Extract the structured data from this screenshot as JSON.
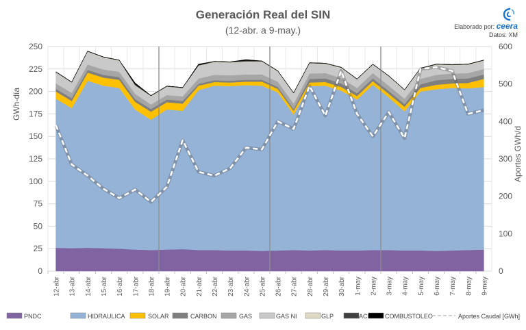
{
  "header": {
    "title": "Generación Real del SIN",
    "subtitle": "(12-abr. a 9-may.)",
    "credits_line1": "Elaborado por:",
    "credits_brand": "ceera",
    "credits_line2": "Datos: XM"
  },
  "chart_data": {
    "type": "area",
    "xlabel": "",
    "ylabel": "GWh-día",
    "y2label": "Aportes GWh/d",
    "ylim": [
      0,
      250
    ],
    "y2lim": [
      0,
      600
    ],
    "yticks": [
      "0",
      "25",
      "50",
      "75",
      "100",
      "125",
      "150",
      "175",
      "200",
      "225",
      "250"
    ],
    "y2ticks": [
      "0",
      "100",
      "200",
      "300",
      "400",
      "500",
      "600"
    ],
    "grid": true,
    "legend_position": "bottom",
    "categories": [
      "12-abr",
      "13-abr",
      "14-abr",
      "15-abr",
      "16-abr",
      "17-abr",
      "18-abr",
      "19-abr",
      "20-abr",
      "21-abr",
      "22-abr",
      "23-abr",
      "24-abr",
      "25-abr",
      "26-abr",
      "27-abr",
      "28-abr",
      "29-abr",
      "30-abr",
      "1-may",
      "2-may",
      "3-may",
      "4-may",
      "5-may",
      "6-may",
      "7-may",
      "8-may",
      "9-may"
    ],
    "week_separators_after": [
      "18-abr",
      "25-abr",
      "2-may"
    ],
    "series": [
      {
        "name": "PNDC",
        "color": "#8064a2",
        "values": [
          26,
          25.5,
          26,
          25.5,
          25,
          24,
          23.5,
          24,
          24.5,
          23.5,
          23.5,
          23,
          23,
          22.5,
          23,
          23.5,
          23,
          23.5,
          23,
          23,
          23.5,
          23.5,
          23,
          23,
          22.5,
          23,
          23.5,
          24
        ]
      },
      {
        "name": "HIDRAULICA",
        "color": "#95b3d7",
        "values": [
          166,
          156,
          186,
          181,
          179,
          156,
          145,
          156,
          154,
          178,
          183,
          183,
          184,
          184,
          176,
          151,
          183,
          183,
          178,
          168,
          184,
          170,
          155,
          177,
          180,
          181,
          180,
          181
        ]
      },
      {
        "name": "SOLAR",
        "color": "#ffc000",
        "values": [
          8,
          8,
          9,
          9,
          9,
          8.5,
          9,
          8,
          8,
          5,
          4,
          4,
          4,
          4.5,
          4,
          4,
          4,
          4,
          4,
          4,
          4,
          4,
          5,
          4,
          5,
          5,
          6,
          9
        ]
      },
      {
        "name": "CARBON",
        "color": "#7f7f7f",
        "values": [
          3,
          3,
          3,
          3,
          3,
          3,
          3,
          3,
          3,
          2,
          2,
          2,
          2,
          2,
          2,
          2,
          4,
          4,
          4,
          3,
          3,
          3,
          3,
          4,
          5,
          5,
          5,
          5
        ]
      },
      {
        "name": "GAS",
        "color": "#a6a6a6",
        "values": [
          6,
          6,
          6,
          6,
          6,
          6,
          5,
          5,
          5,
          6,
          6,
          6,
          6,
          6,
          6,
          6,
          6,
          6,
          6,
          6,
          6,
          6,
          6,
          6,
          6,
          6,
          6,
          6
        ]
      },
      {
        "name": "GAS NI",
        "color": "#c9c9c9",
        "values": [
          12,
          11,
          14,
          13,
          12,
          9,
          9,
          9,
          9,
          14,
          14,
          14,
          14,
          14,
          11,
          11,
          11,
          10,
          11,
          9,
          9,
          10,
          9,
          11,
          11,
          9,
          9,
          9
        ]
      },
      {
        "name": "GLP",
        "color": "#ddd9c3",
        "values": [
          0.5,
          0.5,
          0.5,
          0.5,
          0.5,
          0.5,
          0.5,
          0.5,
          0.5,
          0.5,
          0.5,
          0.5,
          0.5,
          0.5,
          0.5,
          0.5,
          0.5,
          0.5,
          0.5,
          0.5,
          0.5,
          0.5,
          0.5,
          0.5,
          0.5,
          0.5,
          0.5,
          0.5
        ]
      },
      {
        "name": "ACPM",
        "color": "#404040",
        "values": [
          0.5,
          0.5,
          0.5,
          0.5,
          0.5,
          1,
          0.5,
          0.5,
          0.5,
          0.5,
          0.5,
          0.5,
          1,
          0.5,
          0.5,
          0.5,
          0.5,
          0.5,
          0.5,
          0.5,
          0.5,
          0.5,
          0.5,
          0.5,
          0.5,
          0.5,
          0.5,
          0.5
        ]
      },
      {
        "name": "COMBUSTOLEO",
        "color": "#000000",
        "values": [
          0,
          0,
          0,
          0,
          0,
          1.5,
          0,
          0,
          0,
          1,
          0,
          0,
          1,
          0,
          0,
          0,
          0,
          0,
          0,
          0,
          0,
          0,
          0,
          0,
          0,
          0,
          0,
          0
        ]
      }
    ],
    "line_series": {
      "name": "Aportes Caudal [GWh]",
      "axis": "right",
      "values": [
        390,
        285,
        255,
        220,
        195,
        218,
        185,
        225,
        350,
        265,
        255,
        275,
        330,
        325,
        400,
        380,
        495,
        415,
        535,
        420,
        360,
        425,
        355,
        540,
        545,
        535,
        420,
        430
      ]
    }
  }
}
